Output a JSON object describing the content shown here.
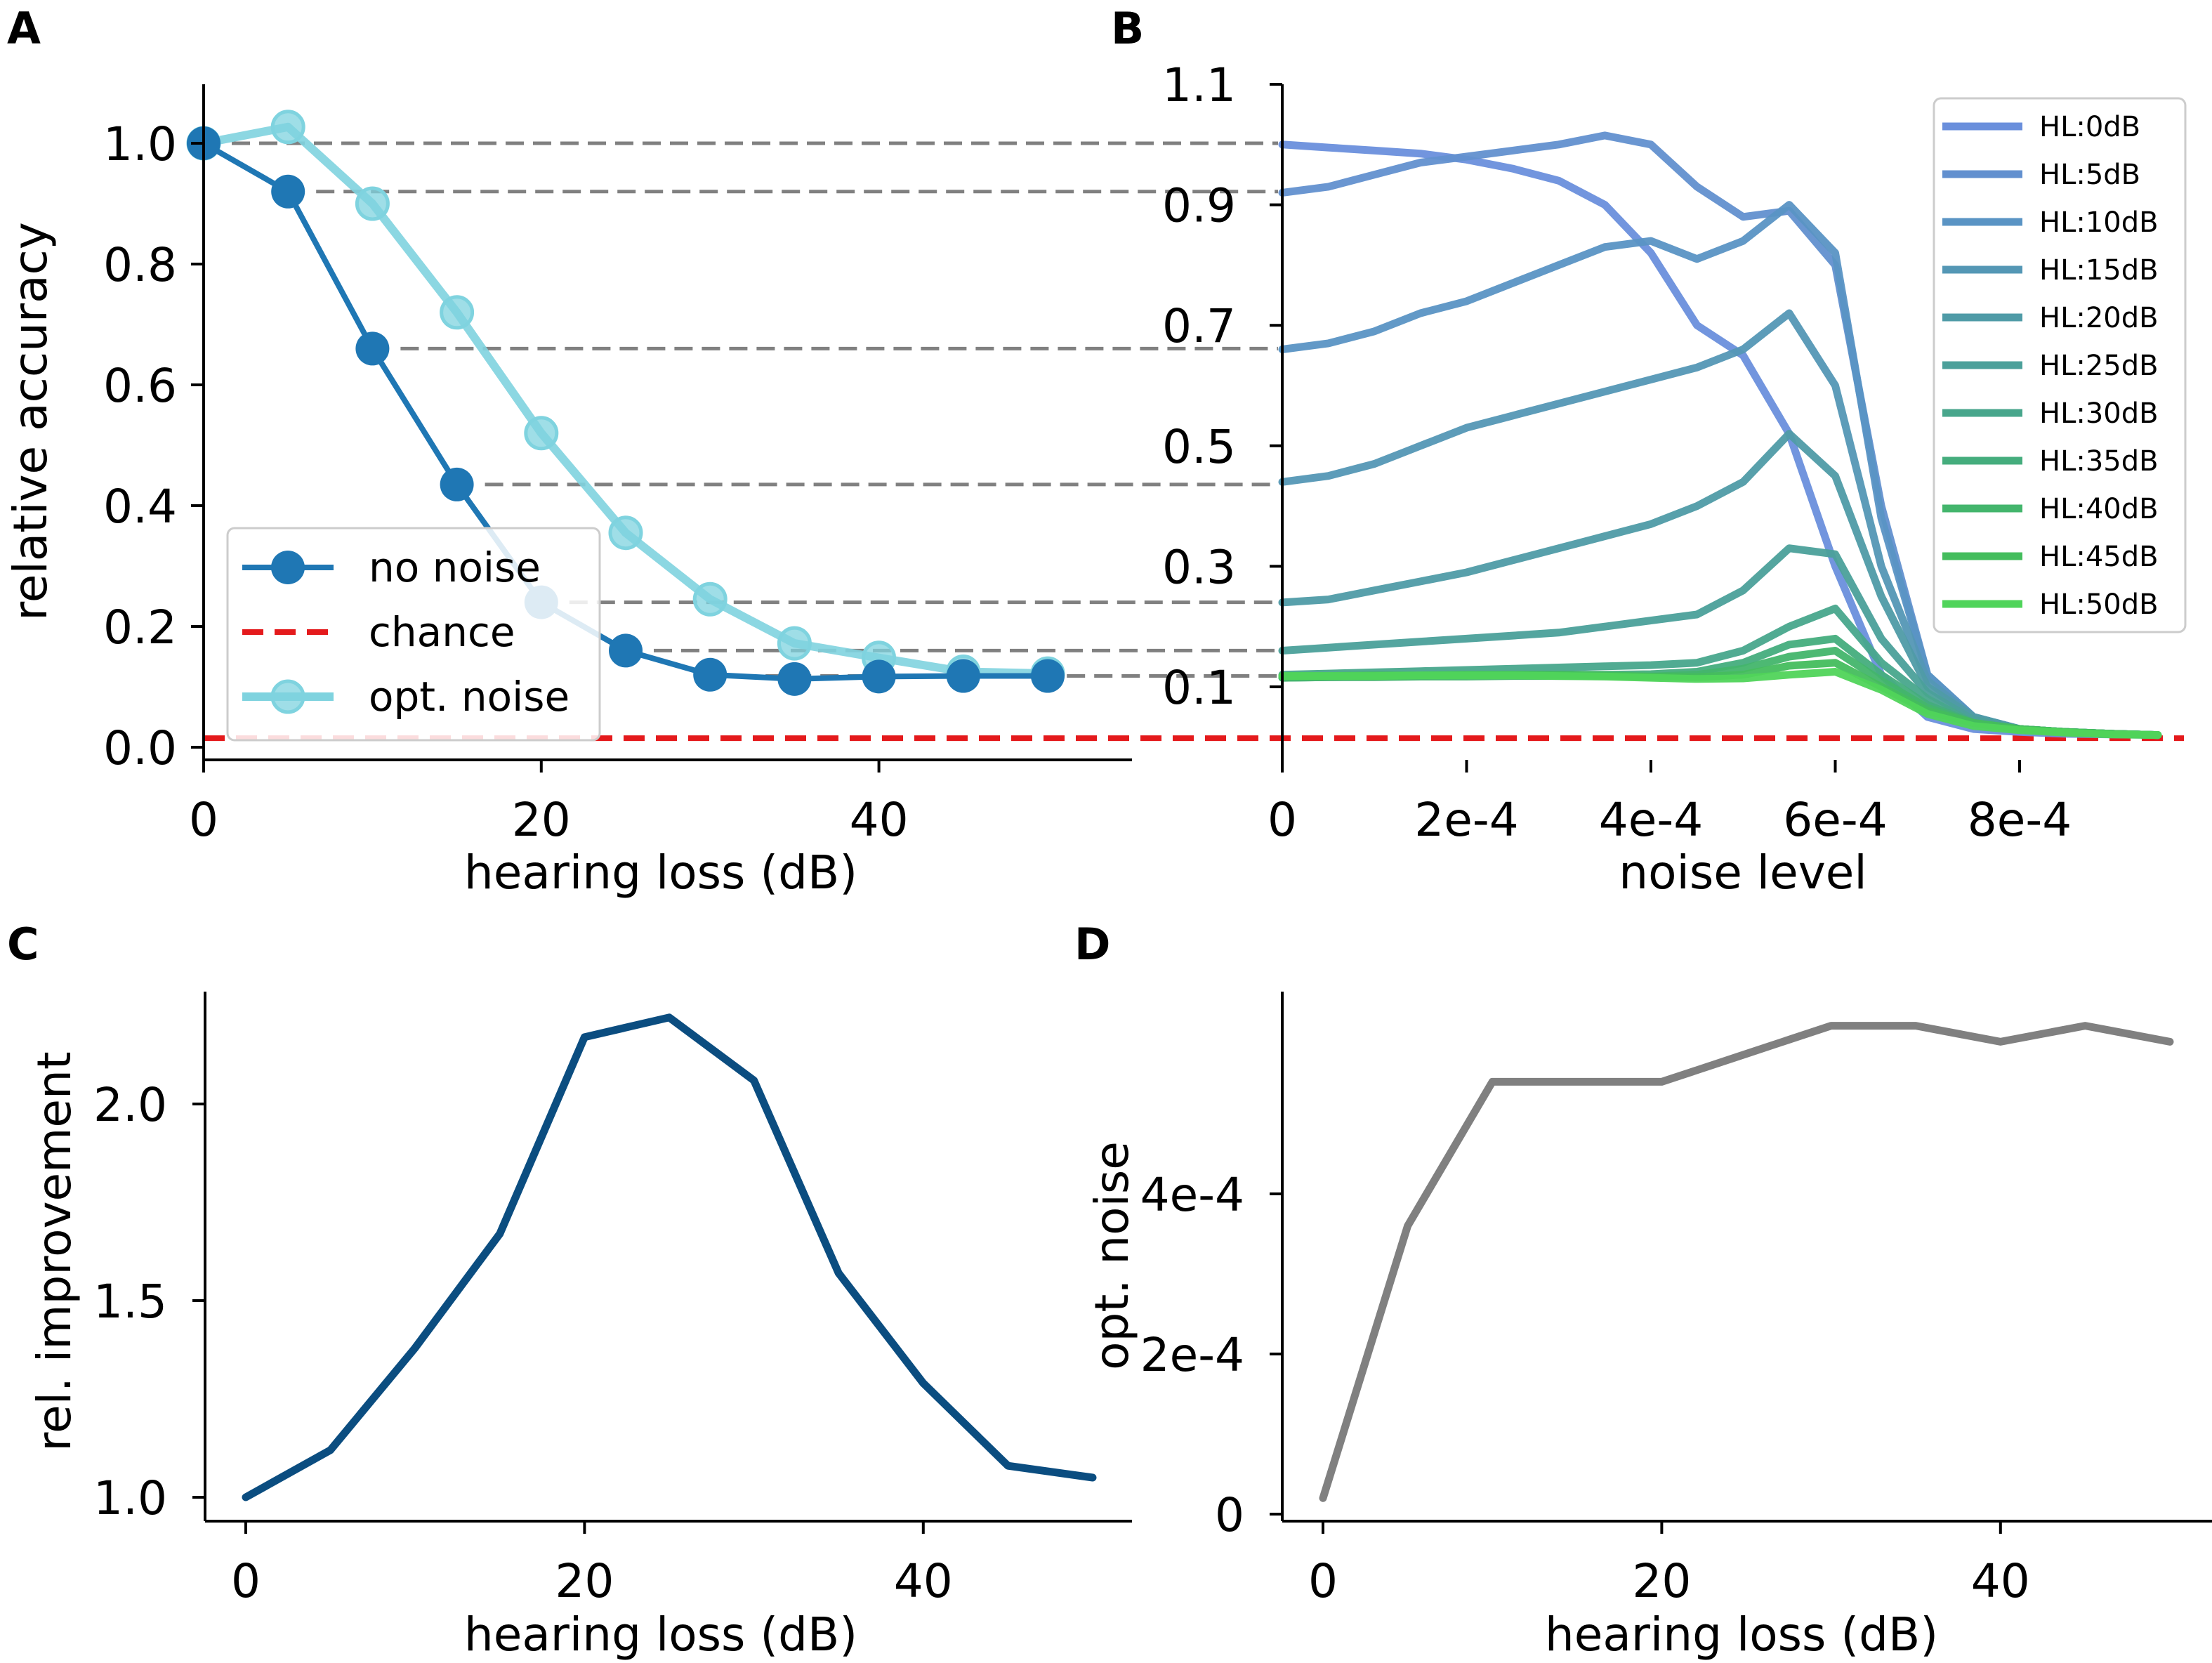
{
  "chart_data": [
    {
      "panel": "A",
      "type": "line",
      "xlabel": "hearing loss (dB)",
      "ylabel": "relative accuracy",
      "xlim": [
        0,
        55
      ],
      "ylim": [
        0.0,
        1.1
      ],
      "xticks": [
        0,
        20,
        40
      ],
      "yticks": [
        0.0,
        0.2,
        0.4,
        0.6,
        0.8,
        1.0
      ],
      "ytick_labels": [
        "0.0",
        "0.2",
        "0.4",
        "0.6",
        "0.8",
        "1.0"
      ],
      "x": [
        0,
        5,
        10,
        15,
        20,
        25,
        30,
        35,
        40,
        45,
        50
      ],
      "series": [
        {
          "name": "no noise",
          "color": "#1f77b4",
          "values": [
            1.0,
            0.92,
            0.66,
            0.435,
            0.24,
            0.16,
            0.12,
            0.113,
            0.117,
            0.118,
            0.118
          ]
        },
        {
          "name": "opt. noise",
          "color": "#7fd3df",
          "values": [
            1.0,
            1.027,
            0.9,
            0.72,
            0.52,
            0.355,
            0.245,
            0.172,
            0.148,
            0.125,
            0.122
          ]
        }
      ],
      "chance": {
        "name": "chance",
        "value": 0.015,
        "color": "#e41a1c"
      },
      "legend": [
        "no noise",
        "chance",
        "opt. noise"
      ],
      "legend_position": "lower-left",
      "reference_lines": [
        1.0,
        0.92,
        0.66,
        0.435,
        0.24,
        0.16,
        0.118
      ]
    },
    {
      "panel": "B",
      "type": "line",
      "xlabel": "noise level",
      "ylabel": "",
      "xlim": [
        0,
        0.00098
      ],
      "ylim": [
        0.0,
        1.1
      ],
      "xticks": [
        0,
        0.0002,
        0.0004,
        0.0006,
        0.0008
      ],
      "xtick_labels": [
        "0",
        "2e-4",
        "4e-4",
        "6e-4",
        "8e-4"
      ],
      "yticks": [
        0.1,
        0.3,
        0.5,
        0.7,
        0.9,
        1.1
      ],
      "ytick_labels": [
        "0.1",
        "0.3",
        "0.5",
        "0.7",
        "0.9",
        "1.1"
      ],
      "chance": {
        "value": 0.015,
        "color": "#e41a1c"
      },
      "legend_position": "top-right",
      "x": [
        0,
        5e-05,
        0.0001,
        0.00015,
        0.0002,
        0.00025,
        0.0003,
        0.00035,
        0.0004,
        0.00045,
        0.0005,
        0.00055,
        0.0006,
        0.00065,
        0.0007,
        0.00075,
        0.0008,
        0.00085,
        0.0009,
        0.00095
      ],
      "series": [
        {
          "name": "HL:0dB",
          "color": "#6a8fdc",
          "values": [
            1.0,
            0.995,
            0.99,
            0.985,
            0.975,
            0.96,
            0.94,
            0.9,
            0.82,
            0.7,
            0.65,
            0.52,
            0.3,
            0.12,
            0.05,
            0.03,
            0.025,
            0.022,
            0.021,
            0.02
          ]
        },
        {
          "name": "HL:5dB",
          "color": "#6290cf",
          "values": [
            0.92,
            0.93,
            0.95,
            0.97,
            0.98,
            0.99,
            1.0,
            1.015,
            1.0,
            0.93,
            0.88,
            0.89,
            0.8,
            0.4,
            0.12,
            0.05,
            0.03,
            0.025,
            0.022,
            0.02
          ]
        },
        {
          "name": "HL:10dB",
          "color": "#5a94c4",
          "values": [
            0.66,
            0.67,
            0.69,
            0.72,
            0.74,
            0.77,
            0.8,
            0.83,
            0.84,
            0.81,
            0.84,
            0.9,
            0.82,
            0.38,
            0.12,
            0.05,
            0.03,
            0.025,
            0.022,
            0.02
          ]
        },
        {
          "name": "HL:15dB",
          "color": "#5497b5",
          "values": [
            0.44,
            0.45,
            0.47,
            0.5,
            0.53,
            0.55,
            0.57,
            0.59,
            0.61,
            0.63,
            0.66,
            0.72,
            0.6,
            0.3,
            0.11,
            0.05,
            0.03,
            0.025,
            0.022,
            0.02
          ]
        },
        {
          "name": "HL:20dB",
          "color": "#4f9ba7",
          "values": [
            0.24,
            0.245,
            0.26,
            0.275,
            0.29,
            0.31,
            0.33,
            0.35,
            0.37,
            0.4,
            0.44,
            0.52,
            0.45,
            0.25,
            0.1,
            0.05,
            0.03,
            0.025,
            0.022,
            0.02
          ]
        },
        {
          "name": "HL:25dB",
          "color": "#4ba09a",
          "values": [
            0.16,
            0.165,
            0.17,
            0.175,
            0.18,
            0.185,
            0.19,
            0.2,
            0.21,
            0.22,
            0.26,
            0.33,
            0.32,
            0.18,
            0.09,
            0.045,
            0.03,
            0.025,
            0.022,
            0.02
          ]
        },
        {
          "name": "HL:30dB",
          "color": "#48a68c",
          "values": [
            0.12,
            0.122,
            0.124,
            0.126,
            0.128,
            0.13,
            0.132,
            0.134,
            0.136,
            0.14,
            0.16,
            0.2,
            0.23,
            0.14,
            0.08,
            0.04,
            0.03,
            0.025,
            0.022,
            0.02
          ]
        },
        {
          "name": "HL:35dB",
          "color": "#45ad7d",
          "values": [
            0.115,
            0.116,
            0.117,
            0.118,
            0.119,
            0.12,
            0.12,
            0.12,
            0.121,
            0.125,
            0.14,
            0.17,
            0.18,
            0.12,
            0.07,
            0.04,
            0.03,
            0.025,
            0.022,
            0.02
          ]
        },
        {
          "name": "HL:40dB",
          "color": "#43b56c",
          "values": [
            0.115,
            0.116,
            0.116,
            0.117,
            0.117,
            0.118,
            0.118,
            0.118,
            0.117,
            0.12,
            0.13,
            0.15,
            0.16,
            0.11,
            0.065,
            0.04,
            0.03,
            0.025,
            0.022,
            0.02
          ]
        },
        {
          "name": "HL:45dB",
          "color": "#44bd5d",
          "values": [
            0.118,
            0.118,
            0.119,
            0.119,
            0.12,
            0.12,
            0.12,
            0.119,
            0.117,
            0.116,
            0.12,
            0.135,
            0.14,
            0.1,
            0.06,
            0.04,
            0.03,
            0.025,
            0.022,
            0.02
          ]
        },
        {
          "name": "HL:50dB",
          "color": "#50d45a",
          "values": [
            0.118,
            0.118,
            0.118,
            0.119,
            0.119,
            0.119,
            0.118,
            0.117,
            0.115,
            0.113,
            0.114,
            0.12,
            0.125,
            0.095,
            0.055,
            0.035,
            0.028,
            0.024,
            0.021,
            0.02
          ]
        }
      ]
    },
    {
      "panel": "C",
      "type": "line",
      "xlabel": "hearing loss (dB)",
      "ylabel": "rel. improvement",
      "xlim": [
        -2.5,
        50
      ],
      "ylim": [
        0.95,
        2.27
      ],
      "xticks": [
        0,
        20,
        40
      ],
      "yticks": [
        1.0,
        1.5,
        2.0
      ],
      "ytick_labels": [
        "1.0",
        "1.5",
        "2.0"
      ],
      "x": [
        0,
        5,
        10,
        15,
        20,
        25,
        30,
        35,
        40,
        45,
        50
      ],
      "series": [
        {
          "name": "rel. improvement",
          "color": "#0b4d80",
          "values": [
            1.0,
            1.12,
            1.38,
            1.67,
            2.17,
            2.22,
            2.06,
            1.57,
            1.29,
            1.08,
            1.05
          ]
        }
      ]
    },
    {
      "panel": "D",
      "type": "line",
      "xlabel": "hearing loss (dB)",
      "ylabel": "opt. noise",
      "xlim": [
        -2.5,
        50
      ],
      "ylim": [
        -2e-05,
        0.00065
      ],
      "xticks": [
        0,
        20,
        40
      ],
      "yticks": [
        0,
        0.0002,
        0.0004
      ],
      "ytick_labels": [
        "0",
        "2e-4",
        "4e-4"
      ],
      "x": [
        0,
        5,
        10,
        15,
        20,
        25,
        30,
        35,
        40,
        45,
        50
      ],
      "series": [
        {
          "name": "opt. noise",
          "color": "#808080",
          "values": [
            2e-05,
            0.00036,
            0.00054,
            0.00054,
            0.00054,
            0.000575,
            0.00061,
            0.00061,
            0.00059,
            0.00061,
            0.00059
          ]
        }
      ]
    }
  ]
}
